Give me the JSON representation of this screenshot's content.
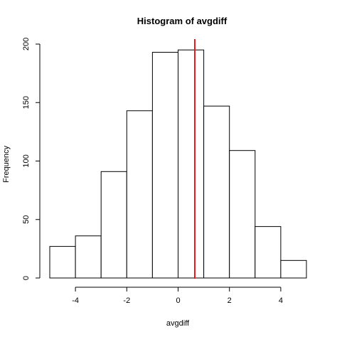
{
  "chart_data": {
    "type": "bar",
    "title": "Histogram of avgdiff",
    "xlabel": "avgdiff",
    "ylabel": "Frequency",
    "bins": [
      {
        "from": -5,
        "to": -4,
        "count": 27
      },
      {
        "from": -4,
        "to": -3,
        "count": 36
      },
      {
        "from": -3,
        "to": -2,
        "count": 91
      },
      {
        "from": -2,
        "to": -1,
        "count": 143
      },
      {
        "from": -1,
        "to": 0,
        "count": 193
      },
      {
        "from": 0,
        "to": 1,
        "count": 195
      },
      {
        "from": 1,
        "to": 2,
        "count": 147
      },
      {
        "from": 2,
        "to": 3,
        "count": 109
      },
      {
        "from": 3,
        "to": 4,
        "count": 44
      },
      {
        "from": 4,
        "to": 5,
        "count": 15
      }
    ],
    "xlim": [
      -5,
      5
    ],
    "ylim": [
      0,
      200
    ],
    "xticks": [
      -4,
      -2,
      0,
      2,
      4
    ],
    "yticks": [
      0,
      50,
      100,
      150,
      200
    ],
    "xtick_labels": [
      "-4",
      "-2",
      "0",
      "2",
      "4"
    ],
    "ytick_labels": [
      "0",
      "50",
      "100",
      "150",
      "200"
    ],
    "vline": {
      "x": 0.65,
      "color": "#e8171b"
    },
    "bar_fill": "#ffffff",
    "bar_stroke": "#000000",
    "grid": false,
    "legend": "none"
  }
}
